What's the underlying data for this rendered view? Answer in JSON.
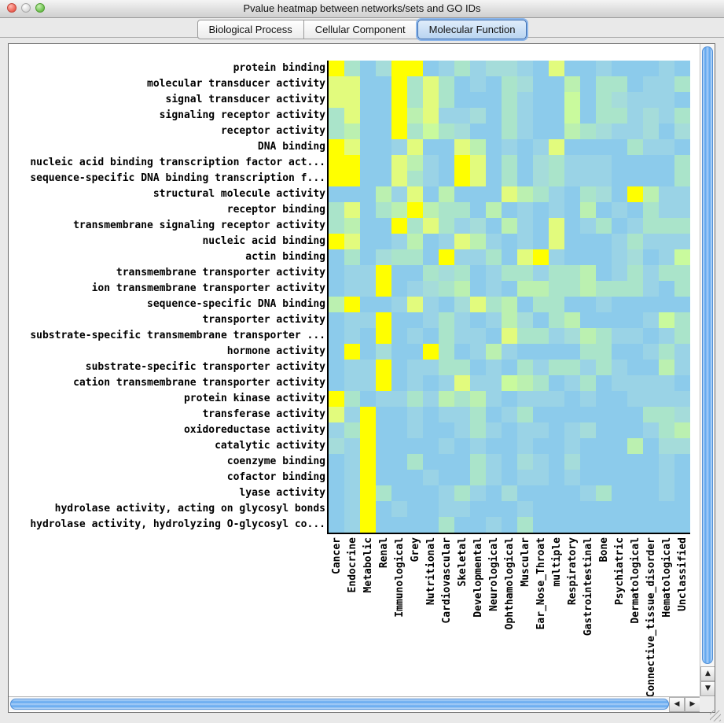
{
  "titlebar": {
    "title": "Pvalue heatmap between networks/sets and GO IDs"
  },
  "tabs": [
    {
      "label": "Biological Process",
      "selected": false
    },
    {
      "label": "Cellular Component",
      "selected": false
    },
    {
      "label": "Molecular Function",
      "selected": true
    }
  ],
  "scrollbar": {
    "up": "▲",
    "down": "▼",
    "left": "◀",
    "right": "▶"
  },
  "chart_data": {
    "type": "heatmap",
    "title": "Pvalue heatmap between networks/sets and GO IDs",
    "rows": [
      "protein binding",
      "molecular transducer activity",
      "signal transducer activity",
      "signaling receptor activity",
      "receptor activity",
      "DNA binding",
      "nucleic acid binding transcription factor act...",
      "sequence-specific DNA binding transcription f...",
      "structural molecule activity",
      "receptor binding",
      "transmembrane signaling receptor activity",
      "nucleic acid binding",
      "actin binding",
      "transmembrane transporter activity",
      "ion transmembrane transporter activity",
      "sequence-specific DNA binding",
      "transporter activity",
      "substrate-specific transmembrane transporter ...",
      "hormone activity",
      "substrate-specific transporter activity",
      "cation transmembrane transporter activity",
      "protein kinase activity",
      "transferase activity",
      "oxidoreductase activity",
      "catalytic activity",
      "coenzyme binding",
      "cofactor binding",
      "lyase activity",
      "hydrolase activity, acting on glycosyl bonds",
      "hydrolase activity, hydrolyzing O-glycosyl co..."
    ],
    "columns": [
      "Cancer",
      "Endocrine",
      "Metabolic",
      "Renal",
      "Immunological",
      "Grey",
      "Nutritional",
      "Cardiovascular",
      "Skeletal",
      "Developmental",
      "Neurological",
      "Ophthamological",
      "Muscular",
      "Ear_Nose_Throat",
      "multiple",
      "Respiratory",
      "Gastrointestinal",
      "Bone",
      "Psychiatric",
      "Dermatological",
      "Connective_tissue_disorder",
      "Hematological",
      "Unclassified"
    ],
    "palette": {
      "0": "#8CCBEB",
      "1": "#9AD3E6",
      "2": "#A5DCDA",
      "3": "#AAE4CA",
      "4": "#BBF0B0",
      "5": "#C9FA9D",
      "6": "#E2FB7D",
      "7": "#FFFF00"
    },
    "legend": {
      "low_color": "#8CCBEB",
      "high_color": "#FFFF00"
    },
    "grid": [
      "73027701312210600100010",
      "66007363010320040330113",
      "66007363000310050321110",
      "36007461120310050331213",
      "34007353200310043211202",
      "76001600640101600003110",
      "77006410760302311100003",
      "77006310760302311100003",
      "00041604000643103207411",
      "36034743304010104010311",
      "34007363120410601301333",
      "76001401641010600013111",
      "03023307113067100012015",
      "01170032301331334013133",
      "01170123401044334333103",
      "47001610263403300100000",
      "01170013101420340000153",
      "01070103110633124311013",
      "07020073014100003300131",
      "01170113301031331310041",
      "01170101611543013011110",
      "73011314341011101001111",
      "61700101130130000000332",
      "13700100131011012000134",
      "21700001010010010004022",
      "01700300031021020000010",
      "01700010031011010000010",
      "01730001310200001300010",
      "01701001100010000000000",
      "01700003001030000000000"
    ]
  }
}
